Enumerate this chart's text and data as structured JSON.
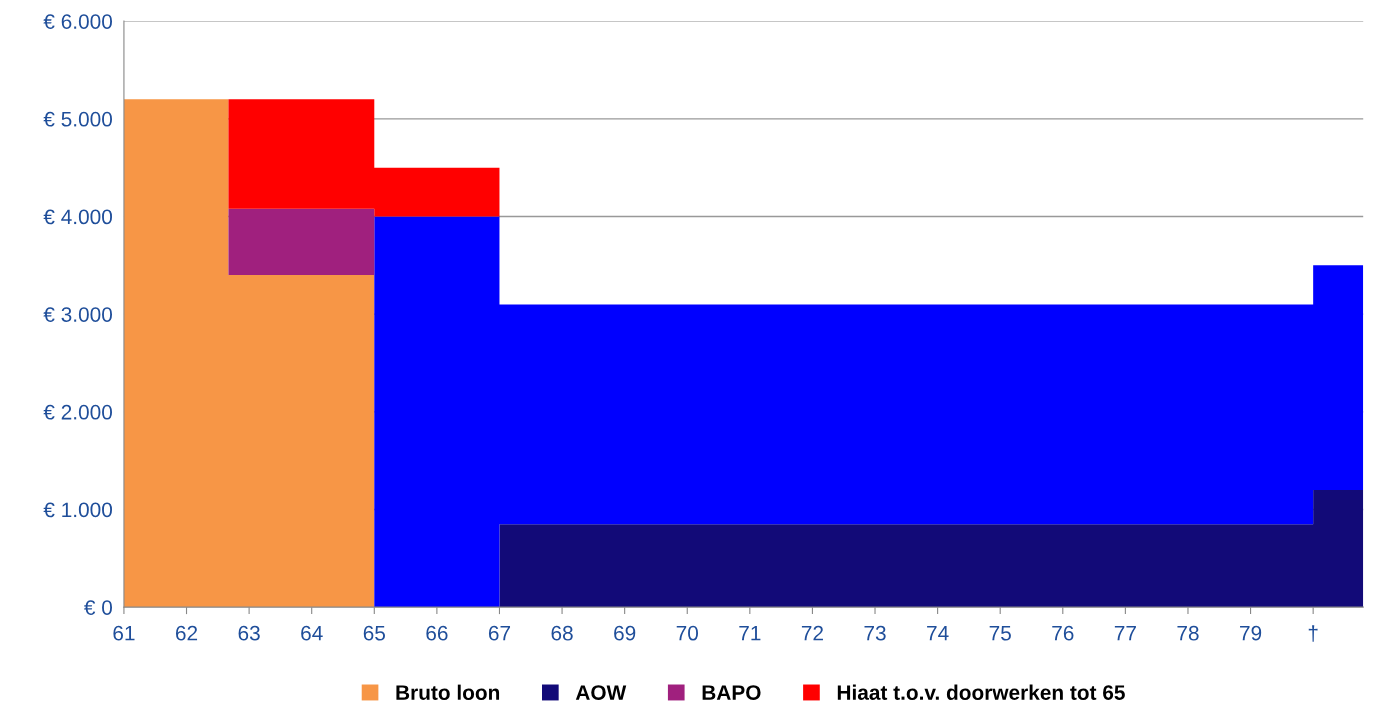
{
  "chart_data": {
    "type": "area",
    "stacked": true,
    "x": [
      61,
      62.67,
      62.67,
      65,
      65,
      67,
      67,
      80,
      80,
      80.8
    ],
    "xlim": [
      61,
      80.8
    ],
    "xticks": [
      61,
      62,
      63,
      64,
      65,
      66,
      67,
      68,
      69,
      70,
      71,
      72,
      73,
      74,
      75,
      76,
      77,
      78,
      79,
      {
        "value": 80,
        "label": "†"
      }
    ],
    "ylim": [
      0,
      6000
    ],
    "yticks": [
      {
        "value": 0,
        "label": "€ 0"
      },
      {
        "value": 1000,
        "label": "€ 1.000"
      },
      {
        "value": 2000,
        "label": "€ 2.000"
      },
      {
        "value": 3000,
        "label": "€ 3.000"
      },
      {
        "value": 4000,
        "label": "€ 4.000"
      },
      {
        "value": 5000,
        "label": "€ 5.000"
      },
      {
        "value": 6000,
        "label": "€ 6.000"
      }
    ],
    "grid": "y",
    "legend": "bottom",
    "series": [
      {
        "name": "Bruto loon",
        "color": "#f79646",
        "values": [
          5200,
          5200,
          3400,
          3400,
          null,
          null,
          null,
          null,
          null,
          null
        ]
      },
      {
        "name": "AOW",
        "color": "#120a78",
        "values": [
          null,
          null,
          null,
          null,
          null,
          null,
          850,
          850,
          1200,
          1200
        ]
      },
      {
        "color": "#0000ff",
        "values": [
          null,
          null,
          null,
          null,
          4000,
          4000,
          2250,
          2250,
          2300,
          2300
        ]
      },
      {
        "name": "BAPO",
        "color": "#a0207e",
        "values": [
          null,
          null,
          680,
          680,
          null,
          null,
          null,
          null,
          null,
          null
        ]
      },
      {
        "name": "Hiaat t.o.v. doorwerken tot 65",
        "color": "#ff0000",
        "values": [
          null,
          null,
          1120,
          1120,
          500,
          500,
          null,
          null,
          null,
          null
        ]
      }
    ]
  }
}
